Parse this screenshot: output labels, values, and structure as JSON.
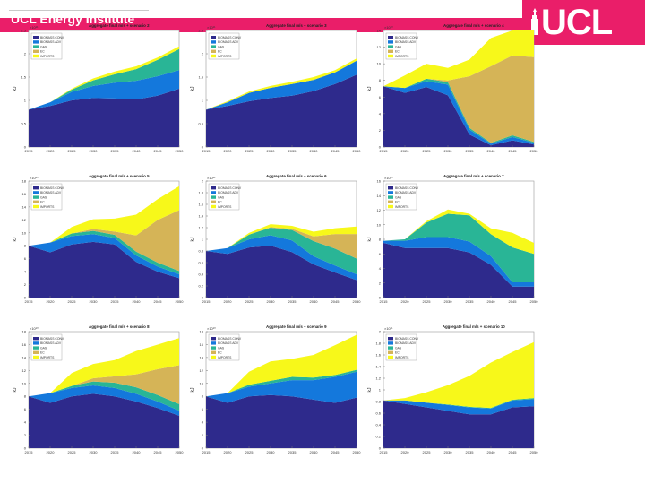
{
  "header": {
    "title": "UCL Energy Institute",
    "logo": "UCL",
    "brand_color": "#ea1e69"
  },
  "colors": {
    "biomass_conv": "#2e2a8c",
    "biomass_advanced": "#1478dc",
    "gas": "#29b596",
    "ec": "#d5b457",
    "imports": "#f7f81a"
  },
  "chart_data": [
    {
      "type": "area",
      "title": "Aggregate final m/s + scenario 2",
      "ylabel": "kJ",
      "exponent": "×10¹¹",
      "ylim": [
        0,
        2.5
      ],
      "yticks": [
        0,
        0.5,
        1,
        1.5,
        2,
        2.5
      ],
      "x": [
        "2015",
        "2020",
        "2025",
        "2030",
        "2035",
        "2040",
        "2045",
        "2050"
      ],
      "series": [
        {
          "name": "BIOMASS CONV",
          "values": [
            0.8,
            0.88,
            1.0,
            1.05,
            1.04,
            1.02,
            1.1,
            1.25
          ]
        },
        {
          "name": "BIOMASS ADV",
          "values": [
            0.0,
            0.08,
            0.18,
            0.26,
            0.34,
            0.4,
            0.42,
            0.4
          ]
        },
        {
          "name": "GAS",
          "values": [
            0.0,
            0.0,
            0.05,
            0.12,
            0.18,
            0.25,
            0.35,
            0.45
          ]
        },
        {
          "name": "EC",
          "values": [
            0.0,
            0.0,
            0.0,
            0.0,
            0.0,
            0.0,
            0.0,
            0.0
          ]
        },
        {
          "name": "IMPORTS",
          "values": [
            0.0,
            0.0,
            0.02,
            0.04,
            0.06,
            0.06,
            0.05,
            0.06
          ]
        }
      ],
      "legend": [
        "BIOMASS CONV",
        "BIOMASS ADV",
        "GAS",
        "EC",
        "IMPORTS"
      ]
    },
    {
      "type": "area",
      "title": "Aggregate final m/s + scenario 3",
      "ylabel": "kJ",
      "exponent": "×10¹¹",
      "ylim": [
        0,
        2.5
      ],
      "yticks": [
        0,
        0.5,
        1,
        1.5,
        2,
        2.5
      ],
      "x": [
        "2015",
        "2020",
        "2025",
        "2030",
        "2035",
        "2040",
        "2045",
        "2050"
      ],
      "series": [
        {
          "name": "BIOMASS CONV",
          "values": [
            0.8,
            0.88,
            0.98,
            1.05,
            1.1,
            1.2,
            1.35,
            1.55
          ]
        },
        {
          "name": "BIOMASS ADV",
          "values": [
            0.0,
            0.08,
            0.18,
            0.22,
            0.25,
            0.24,
            0.25,
            0.3
          ]
        },
        {
          "name": "GAS",
          "values": [
            0.0,
            0.0,
            0.0,
            0.0,
            0.0,
            0.0,
            0.0,
            0.0
          ]
        },
        {
          "name": "EC",
          "values": [
            0.0,
            0.0,
            0.0,
            0.0,
            0.0,
            0.0,
            0.0,
            0.0
          ]
        },
        {
          "name": "IMPORTS",
          "values": [
            0.0,
            0.02,
            0.03,
            0.04,
            0.05,
            0.06,
            0.05,
            0.05
          ]
        }
      ],
      "legend": [
        "BIOMASS CONV",
        "BIOMASS ADV",
        "GAS",
        "EC",
        "IMPORTS"
      ]
    },
    {
      "type": "area",
      "title": "Aggregate final m/s + scenario 4",
      "ylabel": "kJ",
      "exponent": "×10¹⁰",
      "ylim": [
        0,
        14
      ],
      "yticks": [
        0,
        2,
        4,
        6,
        8,
        10,
        12,
        14
      ],
      "x": [
        "2015",
        "2020",
        "2025",
        "2030",
        "2035",
        "2040",
        "2045",
        "2050"
      ],
      "series": [
        {
          "name": "BIOMASS CONV",
          "values": [
            7.3,
            6.5,
            7.2,
            6.2,
            1.5,
            0.2,
            0.8,
            0.3
          ]
        },
        {
          "name": "BIOMASS ADV",
          "values": [
            0.0,
            0.6,
            0.7,
            1.3,
            0.6,
            0.2,
            0.4,
            0.2
          ]
        },
        {
          "name": "GAS",
          "values": [
            0.0,
            0.0,
            0.3,
            0.3,
            0.2,
            0.1,
            0.2,
            0.1
          ]
        },
        {
          "name": "EC",
          "values": [
            0.0,
            0.0,
            0.0,
            0.2,
            6.2,
            9.2,
            9.6,
            10.2
          ]
        },
        {
          "name": "IMPORTS",
          "values": [
            0.0,
            1.5,
            1.8,
            1.5,
            2.0,
            3.4,
            3.0,
            3.2
          ]
        }
      ],
      "legend": [
        "BIOMASS CONV",
        "BIOMASS ADV",
        "GAS",
        "EC",
        "IMPORTS"
      ]
    },
    {
      "type": "area",
      "title": "Aggregate final m/s + scenario 5",
      "ylabel": "kJ",
      "exponent": "×10¹⁰",
      "ylim": [
        0,
        18
      ],
      "yticks": [
        0,
        2,
        4,
        6,
        8,
        10,
        12,
        14,
        16,
        18
      ],
      "x": [
        "2015",
        "2020",
        "2025",
        "2030",
        "2035",
        "2040",
        "2045",
        "2050"
      ],
      "series": [
        {
          "name": "BIOMASS CONV",
          "values": [
            8.0,
            7.0,
            8.2,
            8.6,
            8.2,
            5.5,
            4.0,
            3.0
          ]
        },
        {
          "name": "BIOMASS ADV",
          "values": [
            0.0,
            1.5,
            1.3,
            1.2,
            1.0,
            1.0,
            0.8,
            0.6
          ]
        },
        {
          "name": "GAS",
          "values": [
            0.0,
            0.0,
            0.4,
            0.5,
            0.5,
            0.6,
            0.6,
            0.5
          ]
        },
        {
          "name": "EC",
          "values": [
            0.0,
            0.0,
            0.0,
            0.3,
            0.5,
            2.5,
            6.6,
            9.4
          ]
        },
        {
          "name": "IMPORTS",
          "values": [
            0.0,
            0.0,
            1.0,
            1.5,
            2.0,
            3.2,
            3.2,
            3.7
          ]
        }
      ],
      "legend": [
        "BIOMASS CONV",
        "BIOMASS ADV",
        "GAS",
        "EC",
        "IMPORTS"
      ]
    },
    {
      "type": "area",
      "title": "Aggregate final m/s + scenario 6",
      "ylabel": "kJ",
      "exponent": "×10¹¹",
      "ylim": [
        0,
        2
      ],
      "yticks": [
        0,
        0.2,
        0.4,
        0.6,
        0.8,
        1,
        1.2,
        1.4,
        1.6,
        1.8,
        2
      ],
      "x": [
        "2015",
        "2020",
        "2025",
        "2030",
        "2035",
        "2040",
        "2045",
        "2050"
      ],
      "series": [
        {
          "name": "BIOMASS CONV",
          "values": [
            0.8,
            0.75,
            0.86,
            0.89,
            0.78,
            0.57,
            0.43,
            0.3
          ]
        },
        {
          "name": "BIOMASS ADV",
          "values": [
            0.0,
            0.1,
            0.14,
            0.18,
            0.2,
            0.14,
            0.12,
            0.1
          ]
        },
        {
          "name": "GAS",
          "values": [
            0.0,
            0.0,
            0.08,
            0.13,
            0.18,
            0.26,
            0.29,
            0.27
          ]
        },
        {
          "name": "EC",
          "values": [
            0.0,
            0.0,
            0.0,
            0.01,
            0.02,
            0.08,
            0.25,
            0.42
          ]
        },
        {
          "name": "IMPORTS",
          "values": [
            0.0,
            0.0,
            0.03,
            0.05,
            0.05,
            0.08,
            0.1,
            0.13
          ]
        }
      ],
      "legend": [
        "BIOMASS CONV",
        "BIOMASS ADV",
        "GAS",
        "EC",
        "IMPORTS"
      ]
    },
    {
      "type": "area",
      "title": "Aggregate final m/s + scenario 7",
      "ylabel": "kJ",
      "exponent": "×10¹⁰",
      "ylim": [
        0,
        16
      ],
      "yticks": [
        0,
        2,
        4,
        6,
        8,
        10,
        12,
        14,
        16
      ],
      "x": [
        "2015",
        "2020",
        "2025",
        "2030",
        "2035",
        "2040",
        "2045",
        "2050"
      ],
      "series": [
        {
          "name": "BIOMASS CONV",
          "values": [
            7.5,
            6.8,
            6.8,
            6.8,
            6.2,
            4.5,
            1.5,
            1.5
          ]
        },
        {
          "name": "BIOMASS ADV",
          "values": [
            0.3,
            1.0,
            1.5,
            1.5,
            1.5,
            1.2,
            0.6,
            0.6
          ]
        },
        {
          "name": "GAS",
          "values": [
            0.0,
            0.2,
            2.0,
            3.2,
            3.6,
            3.0,
            4.8,
            3.9
          ]
        },
        {
          "name": "EC",
          "values": [
            0.0,
            0.0,
            0.0,
            0.0,
            0.0,
            0.0,
            0.0,
            0.0
          ]
        },
        {
          "name": "IMPORTS",
          "values": [
            0.0,
            0.0,
            0.2,
            0.6,
            0.2,
            0.8,
            2.0,
            1.5
          ]
        }
      ],
      "legend": [
        "BIOMASS CONV",
        "BIOMASS ADV",
        "GAS",
        "EC",
        "IMPORTS"
      ]
    },
    {
      "type": "area",
      "title": "Aggregate final m/s + scenario 8",
      "ylabel": "kJ",
      "exponent": "×10¹⁰",
      "ylim": [
        0,
        18
      ],
      "yticks": [
        0,
        2,
        4,
        6,
        8,
        10,
        12,
        14,
        16,
        18
      ],
      "x": [
        "2015",
        "2020",
        "2025",
        "2030",
        "2035",
        "2040",
        "2045",
        "2050"
      ],
      "series": [
        {
          "name": "BIOMASS CONV",
          "values": [
            8.0,
            7.0,
            8.0,
            8.4,
            8.0,
            7.2,
            6.2,
            5.0
          ]
        },
        {
          "name": "BIOMASS ADV",
          "values": [
            0.0,
            1.5,
            1.3,
            1.3,
            1.3,
            1.2,
            1.0,
            0.8
          ]
        },
        {
          "name": "GAS",
          "values": [
            0.0,
            0.0,
            0.3,
            0.6,
            0.8,
            1.0,
            1.0,
            1.0
          ]
        },
        {
          "name": "EC",
          "values": [
            0.0,
            0.0,
            0.0,
            0.5,
            1.0,
            2.0,
            4.0,
            6.0
          ]
        },
        {
          "name": "IMPORTS",
          "values": [
            0.0,
            0.0,
            2.0,
            2.2,
            2.5,
            3.6,
            3.8,
            4.2
          ]
        }
      ],
      "legend": [
        "BIOMASS CONV",
        "BIOMASS ADV",
        "GAS",
        "EC",
        "IMPORTS"
      ]
    },
    {
      "type": "area",
      "title": "Aggregate final m/s + scenario 9",
      "ylabel": "kJ",
      "exponent": "×10¹⁰",
      "ylim": [
        0,
        18
      ],
      "yticks": [
        0,
        2,
        4,
        6,
        8,
        10,
        12,
        14,
        16,
        18
      ],
      "x": [
        "2015",
        "2020",
        "2025",
        "2030",
        "2035",
        "2040",
        "2045",
        "2050"
      ],
      "series": [
        {
          "name": "BIOMASS CONV",
          "values": [
            8.0,
            7.0,
            8.0,
            8.2,
            8.0,
            7.5,
            7.0,
            7.8
          ]
        },
        {
          "name": "BIOMASS ADV",
          "values": [
            0.0,
            1.5,
            1.5,
            1.8,
            2.5,
            3.0,
            4.0,
            4.0
          ]
        },
        {
          "name": "GAS",
          "values": [
            0.0,
            0.0,
            0.3,
            0.4,
            0.5,
            0.4,
            0.3,
            0.3
          ]
        },
        {
          "name": "EC",
          "values": [
            0.0,
            0.0,
            0.0,
            0.0,
            0.0,
            0.0,
            0.0,
            0.0
          ]
        },
        {
          "name": "IMPORTS",
          "values": [
            0.0,
            0.0,
            2.0,
            3.0,
            2.8,
            3.5,
            4.6,
            5.4
          ]
        }
      ],
      "legend": [
        "BIOMASS CONV",
        "BIOMASS ADV",
        "GAS",
        "EC",
        "IMPORTS"
      ]
    },
    {
      "type": "area",
      "title": "Aggregate final m/s + scenario 10",
      "ylabel": "kJ",
      "exponent": "×10¹¹",
      "ylim": [
        0,
        2
      ],
      "yticks": [
        0,
        0.2,
        0.4,
        0.6,
        0.8,
        1,
        1.2,
        1.4,
        1.6,
        1.8,
        2
      ],
      "x": [
        "2015",
        "2020",
        "2025",
        "2030",
        "2035",
        "2040",
        "2045",
        "2050"
      ],
      "series": [
        {
          "name": "BIOMASS CONV",
          "values": [
            0.82,
            0.76,
            0.7,
            0.64,
            0.58,
            0.58,
            0.7,
            0.72
          ]
        },
        {
          "name": "BIOMASS ADV",
          "values": [
            0.0,
            0.06,
            0.08,
            0.1,
            0.12,
            0.1,
            0.12,
            0.12
          ]
        },
        {
          "name": "GAS",
          "values": [
            0.0,
            0.0,
            0.0,
            0.01,
            0.01,
            0.01,
            0.01,
            0.02
          ]
        },
        {
          "name": "EC",
          "values": [
            0.0,
            0.0,
            0.0,
            0.0,
            0.0,
            0.0,
            0.0,
            0.0
          ]
        },
        {
          "name": "IMPORTS",
          "values": [
            0.0,
            0.04,
            0.18,
            0.33,
            0.53,
            0.78,
            0.82,
            0.96
          ]
        }
      ],
      "legend": [
        "BIOMASS CONV",
        "BIOMASS ADV",
        "GAS",
        "EC",
        "IMPORTS"
      ]
    }
  ]
}
